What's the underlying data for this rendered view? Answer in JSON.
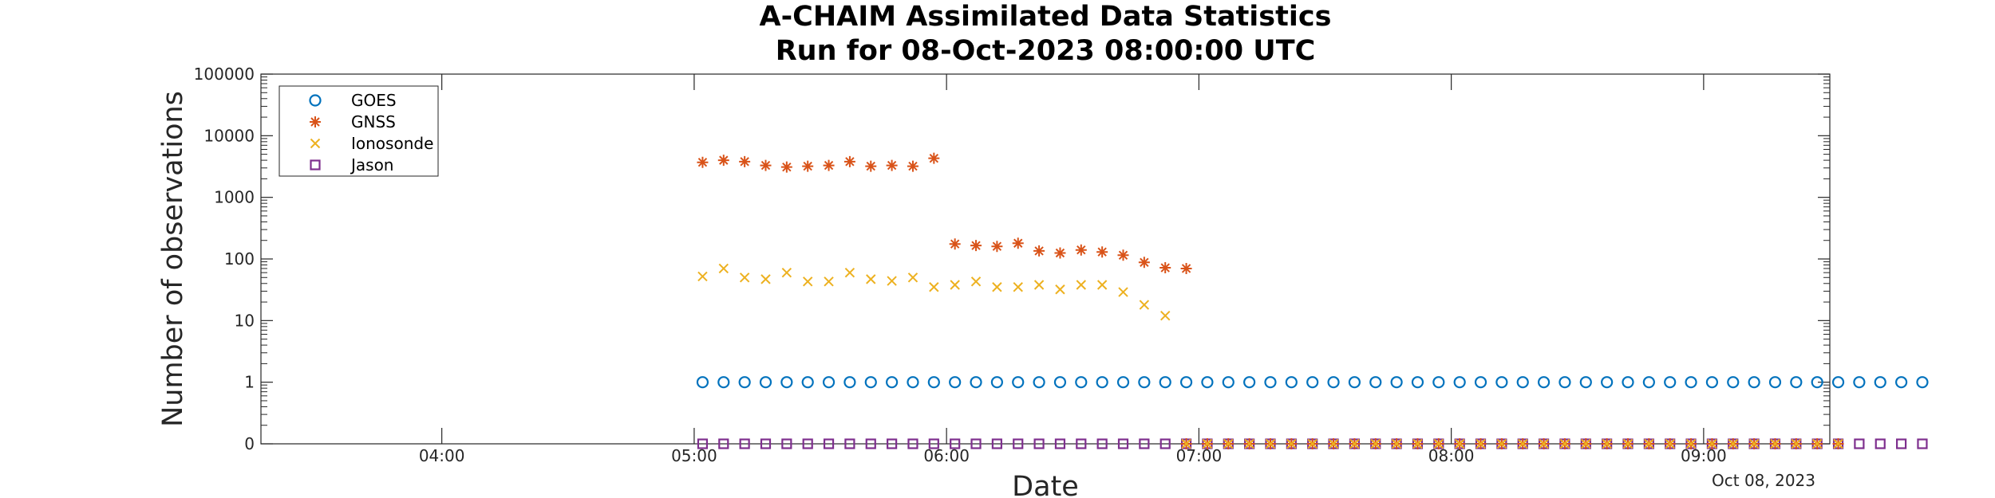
{
  "chart_data": {
    "type": "scatter",
    "title": [
      "A-CHAIM Assimilated Data Statistics",
      "Run for 08-Oct-2023 08:00:00 UTC"
    ],
    "xlabel": "Date",
    "ylabel": "Number of observations",
    "x_axis": {
      "units": "time (HH:MM UTC, 08-Oct-2023)",
      "range": [
        "03:17",
        "09:30"
      ],
      "ticks": [
        "04:00",
        "05:00",
        "06:00",
        "07:00",
        "08:00",
        "09:00"
      ],
      "date_annotation": "Oct 08, 2023"
    },
    "y_axis": {
      "scale": "log",
      "ticks": [
        "0",
        "1",
        "10",
        "100",
        "1000",
        "10000",
        "100000"
      ],
      "note": "zero counts are drawn on the bottom row labelled 0"
    },
    "grid": false,
    "legend": {
      "placement": "top-left",
      "entries": [
        "GOES",
        "GNSS",
        "Ionosonde",
        "Jason"
      ]
    },
    "series": [
      {
        "name": "GOES",
        "marker": "circle",
        "color": "#0072BD",
        "x_start": "05:02",
        "x_end": "09:30",
        "interval_minutes": 5,
        "values": [
          1,
          1,
          1,
          1,
          1,
          1,
          1,
          1,
          1,
          1,
          1,
          1,
          1,
          1,
          1,
          1,
          1,
          1,
          1,
          1,
          1,
          1,
          1,
          1,
          1,
          1,
          1,
          1,
          1,
          1,
          1,
          1,
          1,
          1,
          1,
          1,
          1,
          1,
          1,
          1,
          1,
          1,
          1,
          1,
          1,
          1,
          1,
          1,
          1,
          1,
          1,
          1,
          1,
          1,
          1,
          1,
          1,
          1,
          1
        ]
      },
      {
        "name": "GNSS",
        "marker": "asterisk",
        "color": "#D95319",
        "x": [
          "05:02",
          "05:07",
          "05:12",
          "05:17",
          "05:22",
          "05:27",
          "05:32",
          "05:37",
          "05:42",
          "05:47",
          "05:52",
          "05:57",
          "06:02",
          "06:07",
          "06:12",
          "06:17",
          "06:22",
          "06:27",
          "06:32",
          "06:37",
          "06:42",
          "06:47",
          "06:52",
          "06:57"
        ],
        "values": [
          3700,
          4000,
          3800,
          3300,
          3100,
          3200,
          3300,
          3800,
          3200,
          3300,
          3200,
          4300,
          175,
          165,
          160,
          180,
          135,
          125,
          140,
          130,
          115,
          88,
          72,
          70
        ]
      },
      {
        "name": "Ionosonde",
        "marker": "x",
        "color": "#EDB120",
        "x": [
          "05:02",
          "05:07",
          "05:12",
          "05:17",
          "05:22",
          "05:27",
          "05:32",
          "05:37",
          "05:42",
          "05:47",
          "05:52",
          "05:57",
          "06:02",
          "06:07",
          "06:12",
          "06:17",
          "06:22",
          "06:27",
          "06:32",
          "06:37",
          "06:42",
          "06:47",
          "06:52"
        ],
        "values": [
          52,
          70,
          50,
          47,
          60,
          43,
          43,
          60,
          47,
          44,
          50,
          35,
          38,
          43,
          35,
          35,
          38,
          32,
          38,
          38,
          29,
          18,
          12
        ]
      },
      {
        "name": "Jason",
        "marker": "square",
        "color": "#7E2F8E",
        "x_start": "05:02",
        "x_end": "09:30",
        "interval_minutes": 5,
        "values": [
          0,
          0,
          0,
          0,
          0,
          0,
          0,
          0,
          0,
          0,
          0,
          0,
          0,
          0,
          0,
          0,
          0,
          0,
          0,
          0,
          0,
          0,
          0,
          0,
          0,
          0,
          0,
          0,
          0,
          0,
          0,
          0,
          0,
          0,
          0,
          0,
          0,
          0,
          0,
          0,
          0,
          0,
          0,
          0,
          0,
          0,
          0,
          0,
          0,
          0,
          0,
          0,
          0,
          0,
          0,
          0,
          0,
          0,
          0
        ]
      },
      {
        "name": "",
        "marker": "asterisk",
        "color": "#D95319",
        "x_start": "06:57",
        "x_end": "09:30",
        "interval_minutes": 5,
        "values": [
          0,
          0,
          0,
          0,
          0,
          0,
          0,
          0,
          0,
          0,
          0,
          0,
          0,
          0,
          0,
          0,
          0,
          0,
          0,
          0,
          0,
          0,
          0,
          0,
          0,
          0,
          0,
          0,
          0,
          0,
          0,
          0
        ]
      },
      {
        "name": "",
        "marker": "x",
        "color": "#EDB120",
        "x_start": "06:57",
        "x_end": "09:30",
        "interval_minutes": 5,
        "values": [
          0,
          0,
          0,
          0,
          0,
          0,
          0,
          0,
          0,
          0,
          0,
          0,
          0,
          0,
          0,
          0,
          0,
          0,
          0,
          0,
          0,
          0,
          0,
          0,
          0,
          0,
          0,
          0,
          0,
          0,
          0,
          0
        ]
      }
    ]
  }
}
